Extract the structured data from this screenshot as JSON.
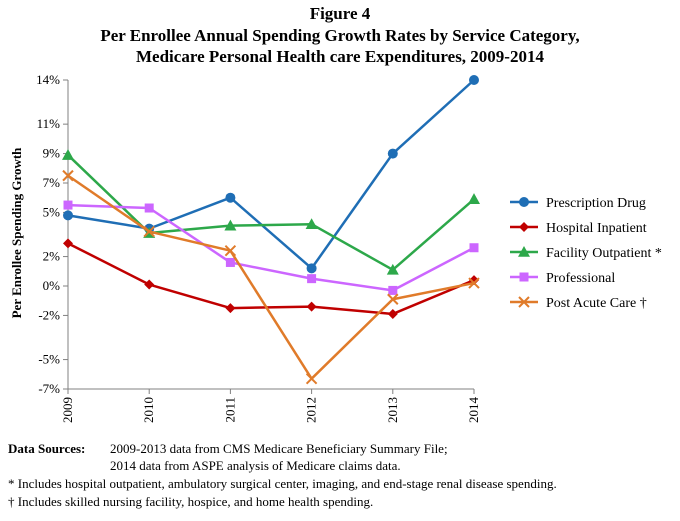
{
  "chart_data": {
    "type": "line",
    "title_lines": [
      "Figure 4",
      "Per Enrollee Annual Spending Growth Rates by Service Category,",
      "Medicare Personal Health care Expenditures, 2009-2014"
    ],
    "ylabel": "Per Enrollee Spending Growth",
    "xlabel": "",
    "x": [
      "2009",
      "2010",
      "2011",
      "2012",
      "2013",
      "2014"
    ],
    "ylim": [
      -7,
      14
    ],
    "yticks": [
      14,
      11,
      9,
      7,
      5,
      2,
      0,
      -2,
      -5,
      -7
    ],
    "ytick_labels": [
      "14%",
      "11%",
      "9%",
      "7%",
      "5%",
      "2%",
      "0%",
      "-2%",
      "-5%",
      "-7%"
    ],
    "grid": false,
    "legend": "right",
    "series": [
      {
        "name": "Prescription Drug",
        "color": "#1F6EB5",
        "marker": "circle",
        "values": [
          4.8,
          3.9,
          6.0,
          1.2,
          9.0,
          14.0
        ]
      },
      {
        "name": "Hospital Inpatient",
        "color": "#C00000",
        "marker": "diamond",
        "values": [
          2.9,
          0.1,
          -1.5,
          -1.4,
          -1.9,
          0.4
        ]
      },
      {
        "name": "Facility Outpatient *",
        "color": "#2DA84A",
        "marker": "triangle",
        "values": [
          8.9,
          3.6,
          4.1,
          4.2,
          1.1,
          5.9
        ]
      },
      {
        "name": "Professional",
        "color": "#CC66FF",
        "marker": "square",
        "values": [
          5.5,
          5.3,
          1.6,
          0.5,
          -0.3,
          2.6
        ]
      },
      {
        "name": "Post Acute Care †",
        "color": "#E07B2A",
        "marker": "x",
        "values": [
          7.5,
          3.7,
          2.4,
          -6.3,
          -0.9,
          0.2
        ]
      }
    ]
  },
  "sources": {
    "line1_label": "Data Sources:",
    "line1_text": "2009-2013  data from CMS Medicare Beneficiary Summary File;",
    "line2_text": "2014 data from ASPE analysis of Medicare claims data.",
    "line3_text": "* Includes hospital outpatient, ambulatory surgical center, imaging, and end-stage renal disease spending.",
    "line4_text": "† Includes skilled nursing facility, hospice, and home health spending."
  }
}
